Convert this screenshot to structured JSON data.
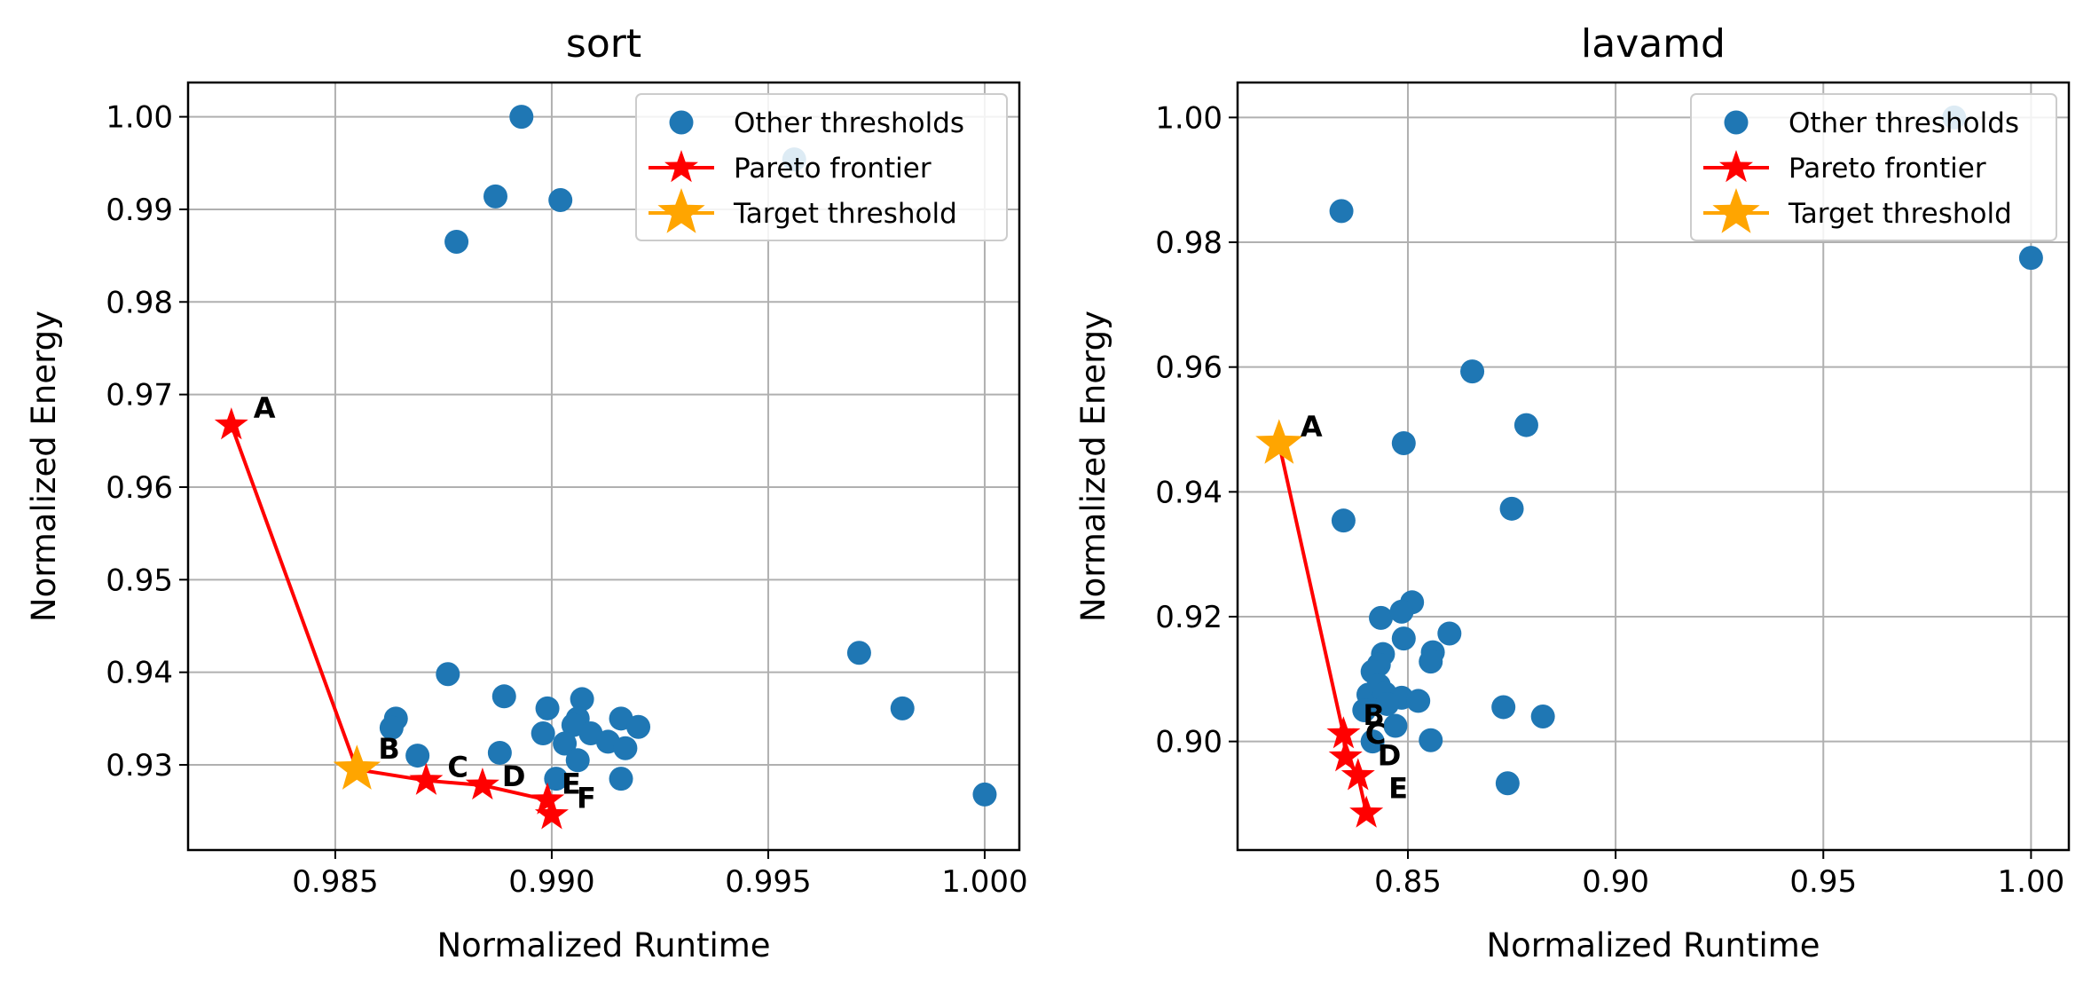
{
  "chart_data": [
    {
      "type": "scatter",
      "title": "sort",
      "xlabel": "Normalized Runtime",
      "ylabel": "Normalized Energy",
      "xlim": [
        0.9816,
        1.0008
      ],
      "ylim": [
        0.9208,
        1.0037
      ],
      "xticks": [
        {
          "v": 0.985,
          "label": "0.985"
        },
        {
          "v": 0.99,
          "label": "0.990"
        },
        {
          "v": 0.995,
          "label": "0.995"
        },
        {
          "v": 1.0,
          "label": "1.000"
        }
      ],
      "yticks": [
        {
          "v": 0.93,
          "label": "0.93"
        },
        {
          "v": 0.94,
          "label": "0.94"
        },
        {
          "v": 0.95,
          "label": "0.95"
        },
        {
          "v": 0.96,
          "label": "0.96"
        },
        {
          "v": 0.97,
          "label": "0.97"
        },
        {
          "v": 0.98,
          "label": "0.98"
        },
        {
          "v": 0.99,
          "label": "0.99"
        },
        {
          "v": 1.0,
          "label": "1.00"
        }
      ],
      "grid": true,
      "legend_position": "top-right",
      "series": [
        {
          "name": "Other thresholds",
          "kind": "scatter",
          "color": "#1f77b4",
          "points": [
            {
              "x": 0.9893,
              "y": 1.0
            },
            {
              "x": 0.9887,
              "y": 0.9914
            },
            {
              "x": 0.9902,
              "y": 0.991
            },
            {
              "x": 0.9878,
              "y": 0.9865
            },
            {
              "x": 0.9956,
              "y": 0.9954
            },
            {
              "x": 0.9876,
              "y": 0.9398
            },
            {
              "x": 0.9889,
              "y": 0.9374
            },
            {
              "x": 0.9864,
              "y": 0.935
            },
            {
              "x": 0.9863,
              "y": 0.934
            },
            {
              "x": 0.9869,
              "y": 0.931
            },
            {
              "x": 0.9888,
              "y": 0.9313
            },
            {
              "x": 0.9898,
              "y": 0.9334
            },
            {
              "x": 0.9899,
              "y": 0.9361
            },
            {
              "x": 0.9907,
              "y": 0.9371
            },
            {
              "x": 0.9906,
              "y": 0.935
            },
            {
              "x": 0.9905,
              "y": 0.9343
            },
            {
              "x": 0.9903,
              "y": 0.9323
            },
            {
              "x": 0.9906,
              "y": 0.9305
            },
            {
              "x": 0.9909,
              "y": 0.9334
            },
            {
              "x": 0.9913,
              "y": 0.9325
            },
            {
              "x": 0.9916,
              "y": 0.935
            },
            {
              "x": 0.9917,
              "y": 0.9318
            },
            {
              "x": 0.992,
              "y": 0.9341
            },
            {
              "x": 0.9916,
              "y": 0.9285
            },
            {
              "x": 0.9901,
              "y": 0.9285
            },
            {
              "x": 0.9971,
              "y": 0.9421
            },
            {
              "x": 0.9981,
              "y": 0.9361
            },
            {
              "x": 1.0,
              "y": 0.9268
            }
          ]
        },
        {
          "name": "Pareto frontier",
          "kind": "line",
          "color": "#ff0000",
          "points": [
            {
              "x": 0.9826,
              "y": 0.9667
            },
            {
              "x": 0.9855,
              "y": 0.9295
            },
            {
              "x": 0.9871,
              "y": 0.9283
            },
            {
              "x": 0.9884,
              "y": 0.9278
            },
            {
              "x": 0.9899,
              "y": 0.9262
            },
            {
              "x": 0.99,
              "y": 0.9246
            }
          ]
        },
        {
          "name": "Target threshold",
          "kind": "marker",
          "color": "#ffa500",
          "points": [
            {
              "x": 0.9855,
              "y": 0.9295
            }
          ]
        }
      ],
      "annotations": [
        {
          "text": "A",
          "x": 0.9826,
          "y": 0.9667
        },
        {
          "text": "B",
          "x": 0.9855,
          "y": 0.9295
        },
        {
          "text": "C",
          "x": 0.9871,
          "y": 0.9283
        },
        {
          "text": "D",
          "x": 0.9884,
          "y": 0.9278
        },
        {
          "text": "E",
          "x": 0.9899,
          "y": 0.9262
        },
        {
          "text": "F",
          "x": 0.99,
          "y": 0.9246
        }
      ]
    },
    {
      "type": "scatter",
      "title": "lavamd",
      "xlabel": "Normalized Runtime",
      "ylabel": "Normalized Energy",
      "xlim": [
        0.809,
        1.0091
      ],
      "ylim": [
        0.8826,
        1.0056
      ],
      "xticks": [
        {
          "v": 0.85,
          "label": "0.85"
        },
        {
          "v": 0.9,
          "label": "0.90"
        },
        {
          "v": 0.95,
          "label": "0.95"
        },
        {
          "v": 1.0,
          "label": "1.00"
        }
      ],
      "yticks": [
        {
          "v": 0.9,
          "label": "0.90"
        },
        {
          "v": 0.92,
          "label": "0.92"
        },
        {
          "v": 0.94,
          "label": "0.94"
        },
        {
          "v": 0.96,
          "label": "0.96"
        },
        {
          "v": 0.98,
          "label": "0.98"
        },
        {
          "v": 1.0,
          "label": "1.00"
        }
      ],
      "grid": true,
      "legend_position": "top-right",
      "series": [
        {
          "name": "Other thresholds",
          "kind": "scatter",
          "color": "#1f77b4",
          "points": [
            {
              "x": 0.9815,
              "y": 1.0
            },
            {
              "x": 1.0,
              "y": 0.9775
            },
            {
              "x": 0.834,
              "y": 0.985
            },
            {
              "x": 0.8655,
              "y": 0.9593
            },
            {
              "x": 0.8785,
              "y": 0.9507
            },
            {
              "x": 0.849,
              "y": 0.9478
            },
            {
              "x": 0.875,
              "y": 0.9373
            },
            {
              "x": 0.8345,
              "y": 0.9354
            },
            {
              "x": 0.851,
              "y": 0.9223
            },
            {
              "x": 0.8435,
              "y": 0.9198
            },
            {
              "x": 0.8485,
              "y": 0.9208
            },
            {
              "x": 0.86,
              "y": 0.9173
            },
            {
              "x": 0.849,
              "y": 0.9165
            },
            {
              "x": 0.856,
              "y": 0.9143
            },
            {
              "x": 0.8555,
              "y": 0.9128
            },
            {
              "x": 0.844,
              "y": 0.914
            },
            {
              "x": 0.843,
              "y": 0.9123
            },
            {
              "x": 0.8415,
              "y": 0.9112
            },
            {
              "x": 0.8405,
              "y": 0.9075
            },
            {
              "x": 0.843,
              "y": 0.909
            },
            {
              "x": 0.8445,
              "y": 0.9077
            },
            {
              "x": 0.8485,
              "y": 0.907
            },
            {
              "x": 0.8525,
              "y": 0.9065
            },
            {
              "x": 0.845,
              "y": 0.906
            },
            {
              "x": 0.8395,
              "y": 0.905
            },
            {
              "x": 0.847,
              "y": 0.9025
            },
            {
              "x": 0.8555,
              "y": 0.9002
            },
            {
              "x": 0.8415,
              "y": 0.9
            },
            {
              "x": 0.873,
              "y": 0.9055
            },
            {
              "x": 0.8825,
              "y": 0.904
            },
            {
              "x": 0.874,
              "y": 0.8933
            }
          ]
        },
        {
          "name": "Pareto frontier",
          "kind": "line",
          "color": "#ff0000",
          "points": [
            {
              "x": 0.819,
              "y": 0.9477
            },
            {
              "x": 0.8345,
              "y": 0.9012
            },
            {
              "x": 0.835,
              "y": 0.8975
            },
            {
              "x": 0.838,
              "y": 0.8945
            },
            {
              "x": 0.84,
              "y": 0.8885
            }
          ]
        },
        {
          "name": "Target threshold",
          "kind": "marker",
          "color": "#ffa500",
          "points": [
            {
              "x": 0.819,
              "y": 0.9477
            }
          ]
        }
      ],
      "annotations": [
        {
          "text": "A",
          "x": 0.819,
          "y": 0.9477
        },
        {
          "text": "B",
          "x": 0.8345,
          "y": 0.9012
        },
        {
          "text": "C",
          "x": 0.835,
          "y": 0.8975
        },
        {
          "text": "D",
          "x": 0.838,
          "y": 0.8945
        },
        {
          "text": "E",
          "x": 0.84,
          "y": 0.8885
        }
      ]
    }
  ]
}
